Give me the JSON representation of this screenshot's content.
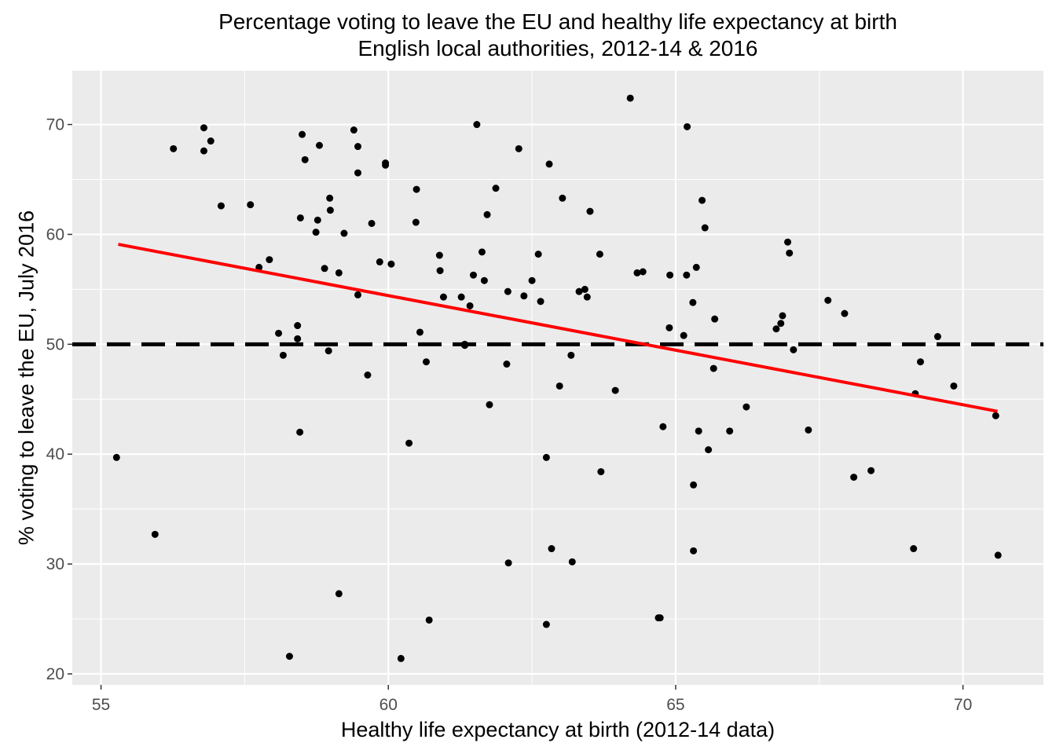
{
  "chart_data": {
    "type": "scatter",
    "title": "Percentage voting to leave the EU and healthy life expectancy at birth",
    "subtitle": "English local authorities, 2012-14 & 2016",
    "xlabel": "Healthy life expectancy at birth (2012-14 data)",
    "ylabel": "% voting to leave the EU, July 2016",
    "xlim": [
      54.5,
      71.4
    ],
    "ylim": [
      19.0,
      74.9
    ],
    "xticks": [
      55,
      60,
      65,
      70
    ],
    "yticks": [
      20,
      30,
      40,
      50,
      60,
      70
    ],
    "grid": true,
    "reference_line": {
      "y": 50,
      "style": "dashed",
      "color": "#000000"
    },
    "trend_line": {
      "color": "#ff0000",
      "points": [
        [
          55.3,
          59.1
        ],
        [
          70.6,
          43.9
        ]
      ]
    },
    "point_color": "#000000",
    "panel_background": "#ebebeb",
    "points": [
      [
        55.27,
        39.7
      ],
      [
        55.94,
        32.7
      ],
      [
        56.26,
        67.8
      ],
      [
        56.79,
        69.7
      ],
      [
        56.79,
        67.6
      ],
      [
        56.91,
        68.5
      ],
      [
        57.09,
        62.6
      ],
      [
        57.6,
        62.7
      ],
      [
        57.75,
        57.0
      ],
      [
        57.93,
        57.7
      ],
      [
        58.09,
        51.0
      ],
      [
        58.17,
        49.0
      ],
      [
        58.28,
        21.6
      ],
      [
        58.42,
        51.7
      ],
      [
        58.42,
        50.5
      ],
      [
        58.46,
        42.0
      ],
      [
        58.47,
        61.5
      ],
      [
        58.5,
        69.1
      ],
      [
        58.55,
        66.8
      ],
      [
        58.74,
        60.2
      ],
      [
        58.77,
        61.3
      ],
      [
        58.8,
        68.1
      ],
      [
        58.89,
        56.9
      ],
      [
        58.96,
        49.4
      ],
      [
        58.98,
        63.3
      ],
      [
        58.99,
        62.2
      ],
      [
        59.14,
        27.3
      ],
      [
        59.14,
        56.5
      ],
      [
        59.23,
        60.1
      ],
      [
        59.4,
        69.5
      ],
      [
        59.47,
        68.0
      ],
      [
        59.47,
        65.6
      ],
      [
        59.47,
        54.5
      ],
      [
        59.64,
        47.2
      ],
      [
        59.71,
        61.0
      ],
      [
        59.85,
        57.5
      ],
      [
        59.95,
        66.5
      ],
      [
        59.95,
        66.3
      ],
      [
        60.05,
        57.3
      ],
      [
        60.22,
        21.4
      ],
      [
        60.36,
        41.0
      ],
      [
        60.48,
        61.1
      ],
      [
        60.49,
        64.1
      ],
      [
        60.55,
        51.1
      ],
      [
        60.66,
        48.4
      ],
      [
        60.71,
        24.9
      ],
      [
        60.89,
        58.1
      ],
      [
        60.9,
        56.7
      ],
      [
        60.96,
        54.3
      ],
      [
        61.27,
        54.3
      ],
      [
        61.33,
        49.9
      ],
      [
        61.33,
        50.0
      ],
      [
        61.42,
        53.5
      ],
      [
        61.48,
        56.3
      ],
      [
        61.54,
        70.0
      ],
      [
        61.63,
        58.4
      ],
      [
        61.67,
        55.8
      ],
      [
        61.72,
        61.8
      ],
      [
        61.76,
        44.5
      ],
      [
        61.87,
        64.2
      ],
      [
        62.06,
        48.2
      ],
      [
        62.08,
        54.8
      ],
      [
        62.09,
        30.1
      ],
      [
        62.27,
        67.8
      ],
      [
        62.36,
        54.4
      ],
      [
        62.5,
        55.8
      ],
      [
        62.61,
        58.2
      ],
      [
        62.65,
        53.9
      ],
      [
        62.75,
        39.7
      ],
      [
        62.75,
        24.5
      ],
      [
        62.8,
        66.4
      ],
      [
        62.84,
        31.4
      ],
      [
        62.98,
        46.2
      ],
      [
        63.03,
        63.3
      ],
      [
        63.18,
        49.0
      ],
      [
        63.2,
        30.2
      ],
      [
        63.32,
        54.8
      ],
      [
        63.42,
        55.0
      ],
      [
        63.46,
        54.3
      ],
      [
        63.51,
        62.1
      ],
      [
        63.68,
        58.2
      ],
      [
        63.7,
        38.4
      ],
      [
        63.95,
        45.8
      ],
      [
        64.21,
        72.4
      ],
      [
        64.33,
        56.5
      ],
      [
        64.43,
        56.6
      ],
      [
        64.7,
        25.1
      ],
      [
        64.73,
        25.1
      ],
      [
        64.78,
        42.5
      ],
      [
        64.89,
        51.5
      ],
      [
        64.9,
        56.3
      ],
      [
        65.14,
        50.8
      ],
      [
        65.19,
        56.3
      ],
      [
        65.2,
        69.8
      ],
      [
        65.3,
        53.8
      ],
      [
        65.31,
        37.2
      ],
      [
        65.31,
        31.2
      ],
      [
        65.36,
        57.0
      ],
      [
        65.4,
        42.1
      ],
      [
        65.46,
        63.1
      ],
      [
        65.51,
        60.6
      ],
      [
        65.57,
        40.4
      ],
      [
        65.66,
        47.8
      ],
      [
        65.68,
        52.3
      ],
      [
        65.94,
        42.1
      ],
      [
        66.23,
        44.3
      ],
      [
        66.75,
        51.4
      ],
      [
        66.83,
        51.9
      ],
      [
        66.86,
        52.6
      ],
      [
        66.95,
        59.3
      ],
      [
        66.98,
        58.3
      ],
      [
        67.05,
        49.5
      ],
      [
        67.31,
        42.2
      ],
      [
        67.65,
        54.0
      ],
      [
        67.94,
        52.8
      ],
      [
        68.1,
        37.9
      ],
      [
        68.4,
        38.5
      ],
      [
        69.14,
        31.4
      ],
      [
        69.17,
        45.5
      ],
      [
        69.26,
        48.4
      ],
      [
        69.56,
        50.7
      ],
      [
        69.84,
        46.2
      ],
      [
        70.57,
        43.5
      ],
      [
        70.61,
        30.8
      ]
    ]
  }
}
